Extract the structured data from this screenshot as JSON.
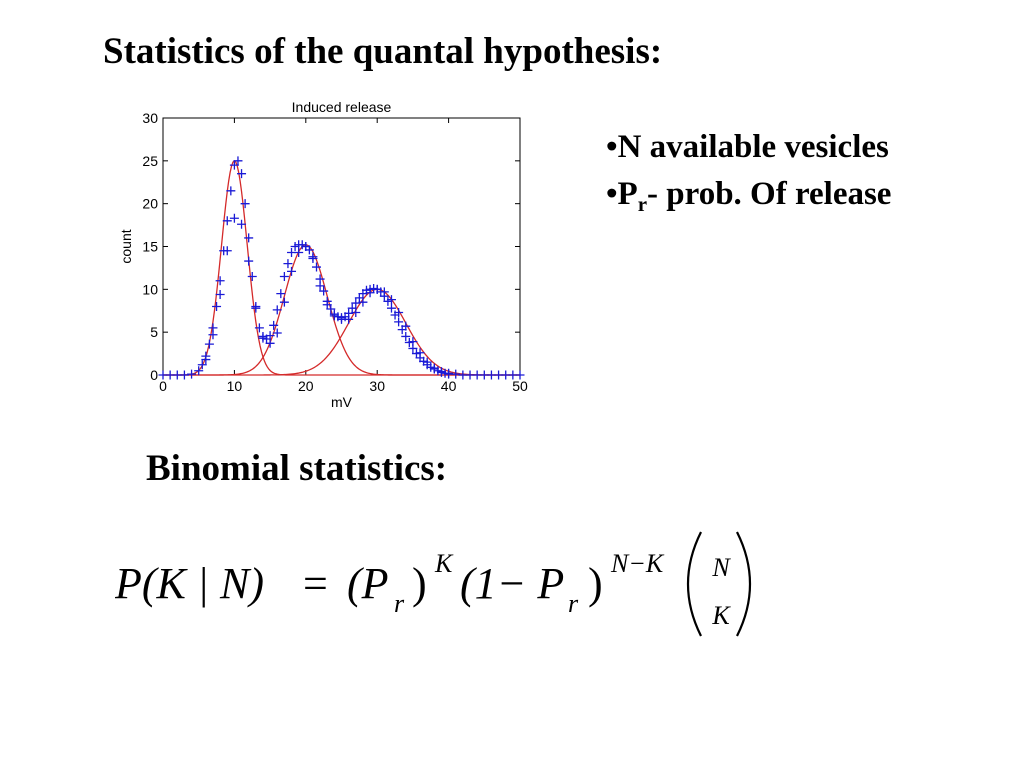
{
  "slide": {
    "title": "Statistics of the quantal hypothesis:",
    "bullets": [
      {
        "prefix": "•",
        "text": "N available vesicles"
      },
      {
        "prefix": "•P",
        "sub": "r",
        "text": "- prob. Of release"
      }
    ],
    "subheading": "Binomial statistics:",
    "formula": {
      "lhs": "P(K | N)",
      "equals": "=",
      "term1": "(P",
      "term1_sub": "r",
      "term1_close": ")",
      "term1_exp": "K",
      "term2": "(1− P",
      "term2_sub": "r",
      "term2_close": ")",
      "term2_exp": "N−K",
      "binom_top": "N",
      "binom_bottom": "K"
    }
  },
  "chart_data": {
    "type": "scatter",
    "title": "Induced release",
    "xlabel": "mV",
    "ylabel": "count",
    "xlim": [
      0,
      50
    ],
    "ylim": [
      0,
      30
    ],
    "xticks": [
      0,
      10,
      20,
      30,
      40,
      50
    ],
    "yticks": [
      0,
      5,
      10,
      15,
      20,
      25,
      30
    ],
    "grid": false,
    "series": [
      {
        "kind": "markers",
        "marker": "plus",
        "color": "#1a1ad6",
        "x": [
          0,
          1,
          2,
          3,
          4,
          5,
          6,
          7,
          8,
          9,
          10,
          11,
          12,
          13,
          14,
          15,
          16,
          17,
          18,
          19,
          20,
          21,
          22,
          23,
          24,
          25,
          26,
          27,
          28,
          29,
          30,
          31,
          32,
          33,
          34,
          35,
          36,
          37,
          38,
          39,
          40,
          41,
          42,
          43,
          44,
          45,
          46,
          47,
          48,
          49,
          50
        ],
        "y": [
          0,
          0,
          0,
          0,
          0.1,
          0.5,
          1.8,
          4.7,
          9.4,
          14.5,
          18.3,
          17.6,
          13.3,
          7.8,
          4.3,
          3.7,
          4.9,
          8.5,
          12.1,
          14.3,
          15.0,
          13.6,
          10.4,
          8.2,
          6.9,
          6.5,
          6.5,
          7.3,
          8.5,
          9.6,
          10.0,
          9.7,
          8.8,
          7.3,
          5.7,
          3.9,
          2.6,
          1.5,
          0.8,
          0.4,
          0.2,
          0.1,
          0,
          0,
          0,
          0,
          0,
          0,
          0,
          0,
          0
        ]
      },
      {
        "kind": "markers",
        "marker": "plus",
        "color": "#1a1ad6",
        "x": [
          5.5,
          6,
          6.5,
          7,
          7.5,
          8,
          8.5,
          9,
          9.5,
          10,
          10.5,
          11,
          11.5,
          12,
          12.5,
          13,
          13.5,
          14,
          14.5,
          15,
          15.5,
          16,
          16.5,
          17,
          17.5,
          18,
          18.5,
          19,
          19.5,
          20,
          20.5,
          21,
          21.5,
          22,
          22.5,
          23,
          23.5,
          24,
          24.5,
          25,
          25.5,
          26,
          26.5,
          27,
          27.5,
          28,
          28.5,
          29,
          29.5,
          30,
          30.5,
          31,
          31.5,
          32,
          32.5,
          33,
          33.5,
          34,
          34.5,
          35,
          35.5,
          36,
          36.5,
          37,
          37.5,
          38,
          38.5,
          39,
          39.5,
          40
        ],
        "y": [
          1.2,
          2.2,
          3.6,
          5.5,
          8.0,
          11.0,
          14.5,
          18.0,
          21.5,
          24.5,
          25.0,
          23.5,
          20.0,
          16.0,
          11.5,
          8.0,
          5.5,
          4.5,
          4.2,
          4.6,
          5.8,
          7.6,
          9.5,
          11.5,
          13.0,
          14.3,
          15.0,
          15.2,
          15.2,
          15.0,
          14.6,
          13.8,
          12.6,
          11.2,
          9.8,
          8.6,
          7.7,
          7.1,
          6.8,
          6.7,
          6.8,
          7.2,
          7.8,
          8.4,
          9.0,
          9.5,
          9.9,
          10.0,
          10.1,
          10.0,
          9.7,
          9.2,
          8.6,
          7.8,
          7.0,
          6.2,
          5.3,
          4.5,
          3.8,
          3.1,
          2.5,
          2.0,
          1.6,
          1.2,
          0.9,
          0.7,
          0.5,
          0.3,
          0.2,
          0.1
        ]
      },
      {
        "kind": "fit",
        "color": "#d42a2a",
        "gaussians": [
          {
            "amplitude": 25,
            "mean": 10,
            "sd": 1.8
          },
          {
            "amplitude": 15.2,
            "mean": 20,
            "sd": 3.0
          },
          {
            "amplitude": 10,
            "mean": 30,
            "sd": 4.0
          }
        ]
      }
    ]
  }
}
